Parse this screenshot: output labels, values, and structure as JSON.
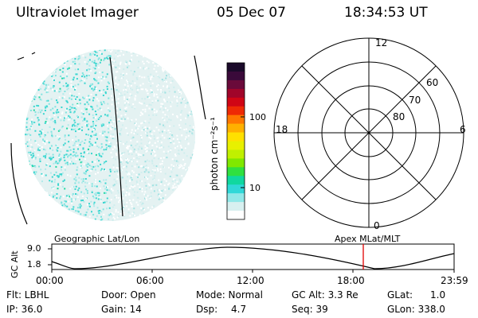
{
  "header": {
    "instrument": "Ultraviolet Imager",
    "date": "05 Dec 07",
    "time": "18:34:53 UT"
  },
  "colorbar": {
    "unit_label": "photon cm⁻²s⁻¹",
    "ticks": [
      "100",
      "10"
    ],
    "colors": [
      "#1a0a2a",
      "#3a0a3a",
      "#6a0a3a",
      "#a0052a",
      "#d00515",
      "#ee2a05",
      "#ff7700",
      "#ffb000",
      "#ffe000",
      "#e8f000",
      "#c0f000",
      "#80e800",
      "#30e040",
      "#10d8a0",
      "#30d8d8",
      "#90e8e8",
      "#d8f0f0",
      "#ffffff"
    ]
  },
  "polar_plot": {
    "mlt_labels": {
      "top": "12",
      "bottom": "0",
      "left": "18",
      "right": "6"
    },
    "lat_labels": [
      "80",
      "70",
      "60"
    ]
  },
  "timeline": {
    "left_label": "Geographic Lat/Lon",
    "right_label": "Apex MLat/MLT",
    "yaxis_title": "GC Alt",
    "y_ticks": [
      "9.0",
      "1.8"
    ],
    "x_ticks": [
      "00:00",
      "06:00",
      "12:00",
      "18:00",
      "23:59"
    ],
    "current_time_hours": 18.58
  },
  "status": {
    "flt": "Flt: LBHL",
    "ip": "IP: 36.0",
    "door": "Door: Open",
    "gain": "Gain: 14",
    "mode": "Mode: Normal",
    "dsp_label": "Dsp:",
    "dsp_value": "4.7",
    "gc_alt": "GC Alt: 3.3 Re",
    "seq": "Seq: 39",
    "glat_label": "GLat:",
    "glat_value": "1.0",
    "glon": "GLon: 338.0"
  }
}
